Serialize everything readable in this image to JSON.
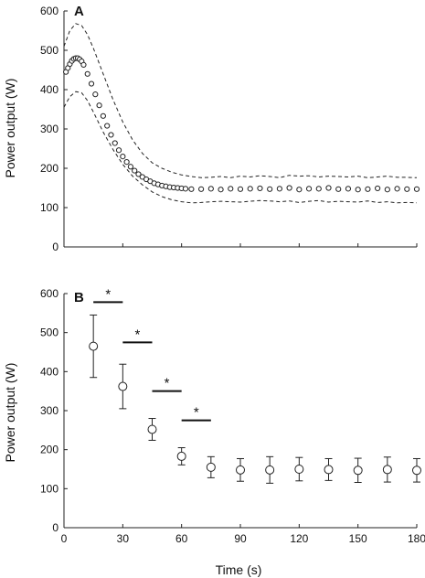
{
  "chart_data": [
    {
      "panel": "A",
      "type": "scatter",
      "ylabel": "Power output (W)",
      "xlim": [
        0,
        180
      ],
      "ylim": [
        0,
        600
      ],
      "yticks": [
        0,
        100,
        200,
        300,
        400,
        500,
        600
      ],
      "xticks": [
        0,
        30,
        60,
        90,
        120,
        150,
        180
      ],
      "show_x_tick_labels": false,
      "series": [
        {
          "role": "mean",
          "marker": "open-circle",
          "x": [
            1,
            2,
            3,
            4,
            5,
            6,
            7,
            8,
            9,
            10,
            12,
            14,
            16,
            18,
            20,
            22,
            24,
            26,
            28,
            30,
            32,
            34,
            36,
            38,
            40,
            42,
            44,
            46,
            48,
            50,
            52,
            54,
            56,
            58,
            60,
            62,
            65,
            70,
            75,
            80,
            85,
            90,
            95,
            100,
            105,
            110,
            115,
            120,
            125,
            130,
            135,
            140,
            145,
            150,
            155,
            160,
            165,
            170,
            175,
            180
          ],
          "y": [
            445,
            455,
            465,
            473,
            478,
            480,
            480,
            477,
            472,
            463,
            440,
            415,
            388,
            360,
            333,
            308,
            285,
            264,
            246,
            230,
            216,
            204,
            194,
            185,
            178,
            172,
            167,
            162,
            159,
            156,
            154,
            152,
            151,
            150,
            149,
            148,
            147,
            147,
            148,
            146,
            148,
            147,
            148,
            149,
            147,
            148,
            150,
            146,
            148,
            148,
            150,
            147,
            148,
            146,
            147,
            149,
            146,
            148,
            147,
            147
          ]
        },
        {
          "role": "upper-bound",
          "style": "dashed",
          "x": [
            0,
            3,
            6,
            9,
            12,
            15,
            20,
            25,
            30,
            35,
            40,
            45,
            50,
            55,
            60,
            65,
            70,
            75,
            80,
            85,
            90,
            95,
            100,
            105,
            110,
            115,
            120,
            125,
            130,
            135,
            140,
            145,
            150,
            155,
            160,
            165,
            170,
            175,
            180
          ],
          "y": [
            510,
            550,
            568,
            563,
            540,
            505,
            440,
            375,
            318,
            272,
            238,
            214,
            200,
            190,
            183,
            179,
            176,
            177,
            179,
            176,
            180,
            178,
            181,
            179,
            176,
            182,
            180,
            181,
            178,
            180,
            179,
            178,
            180,
            176,
            178,
            180,
            177,
            177,
            176
          ]
        },
        {
          "role": "lower-bound",
          "style": "dashed",
          "x": [
            0,
            3,
            6,
            9,
            12,
            15,
            20,
            25,
            30,
            35,
            40,
            45,
            50,
            55,
            60,
            65,
            70,
            75,
            80,
            85,
            90,
            95,
            100,
            105,
            110,
            115,
            120,
            125,
            130,
            135,
            140,
            145,
            150,
            155,
            160,
            165,
            170,
            175,
            180
          ],
          "y": [
            355,
            382,
            395,
            392,
            372,
            343,
            292,
            248,
            210,
            180,
            158,
            140,
            128,
            120,
            115,
            112,
            113,
            115,
            116,
            115,
            114,
            116,
            118,
            117,
            115,
            117,
            113,
            116,
            118,
            114,
            116,
            115,
            114,
            117,
            113,
            115,
            112,
            113,
            112
          ]
        }
      ]
    },
    {
      "panel": "B",
      "type": "scatter",
      "xlabel": "Time (s)",
      "ylabel": "Power output (W)",
      "xlim": [
        0,
        180
      ],
      "ylim": [
        0,
        600
      ],
      "yticks": [
        0,
        100,
        200,
        300,
        400,
        500,
        600
      ],
      "xticks": [
        0,
        30,
        60,
        90,
        120,
        150,
        180
      ],
      "show_x_tick_labels": true,
      "series": [
        {
          "marker": "open-circle-with-error-bars",
          "x": [
            15,
            30,
            45,
            60,
            75,
            90,
            105,
            120,
            135,
            150,
            165,
            180
          ],
          "y": [
            465,
            362,
            252,
            183,
            155,
            148,
            148,
            150,
            149,
            147,
            149,
            147
          ],
          "err": [
            80,
            57,
            28,
            22,
            27,
            29,
            34,
            30,
            28,
            31,
            32,
            30
          ]
        }
      ],
      "significance": [
        {
          "x1": 15,
          "x2": 30,
          "y": 578,
          "label": "*"
        },
        {
          "x1": 30,
          "x2": 45,
          "y": 475,
          "label": "*"
        },
        {
          "x1": 45,
          "x2": 60,
          "y": 350,
          "label": "*"
        },
        {
          "x1": 60,
          "x2": 75,
          "y": 275,
          "label": "*"
        }
      ]
    }
  ]
}
